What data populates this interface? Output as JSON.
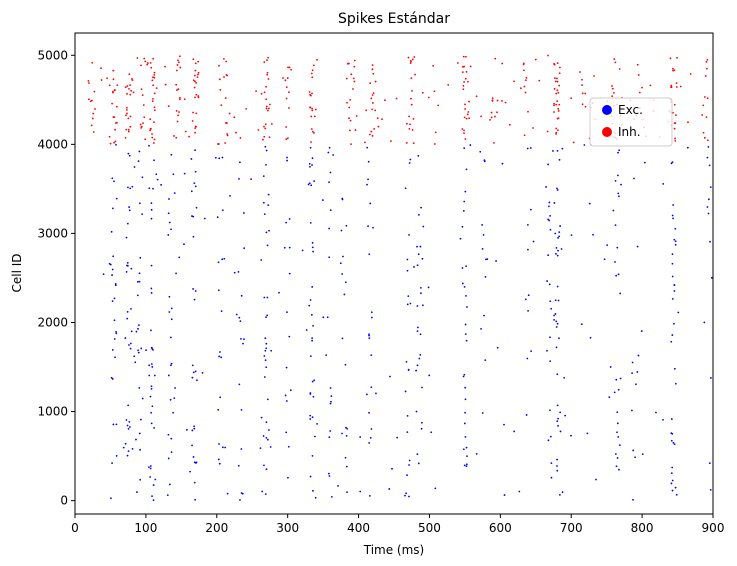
{
  "chart_data": {
    "type": "scatter",
    "title": "Spikes Estándar",
    "xlabel": "Time (ms)",
    "ylabel": "Cell ID",
    "xlim": [
      0,
      900
    ],
    "ylim": [
      -150,
      5250
    ],
    "xticks": [
      0,
      100,
      200,
      300,
      400,
      500,
      600,
      700,
      800,
      900
    ],
    "yticks": [
      0,
      1000,
      2000,
      3000,
      4000,
      5000
    ],
    "grid": false,
    "legend_position": "upper-right",
    "population_boundary": 4000,
    "n_cells": 5000,
    "series": [
      {
        "name": "Exc.",
        "color": "#0000ff",
        "cell_range": [
          0,
          4000
        ],
        "spike_bands_ms": [
          {
            "t": 55,
            "strength": 0.8
          },
          {
            "t": 75,
            "strength": 0.9
          },
          {
            "t": 90,
            "strength": 0.7
          },
          {
            "t": 108,
            "strength": 1.0
          },
          {
            "t": 135,
            "strength": 0.7
          },
          {
            "t": 168,
            "strength": 0.8
          },
          {
            "t": 205,
            "strength": 0.5
          },
          {
            "t": 235,
            "strength": 0.5
          },
          {
            "t": 270,
            "strength": 0.9
          },
          {
            "t": 300,
            "strength": 0.4
          },
          {
            "t": 335,
            "strength": 0.9
          },
          {
            "t": 360,
            "strength": 0.5
          },
          {
            "t": 380,
            "strength": 0.5
          },
          {
            "t": 415,
            "strength": 0.6
          },
          {
            "t": 470,
            "strength": 0.6
          },
          {
            "t": 485,
            "strength": 0.7
          },
          {
            "t": 550,
            "strength": 0.8
          },
          {
            "t": 575,
            "strength": 0.3
          },
          {
            "t": 640,
            "strength": 0.3
          },
          {
            "t": 670,
            "strength": 0.6
          },
          {
            "t": 680,
            "strength": 1.0
          },
          {
            "t": 765,
            "strength": 0.8
          },
          {
            "t": 790,
            "strength": 0.3
          },
          {
            "t": 845,
            "strength": 1.0
          },
          {
            "t": 895,
            "strength": 0.3
          }
        ]
      },
      {
        "name": "Inh.",
        "color": "#ff0000",
        "cell_range": [
          4000,
          5000
        ],
        "spike_bands_ms": [
          {
            "t": 25,
            "strength": 0.5
          },
          {
            "t": 55,
            "strength": 0.7
          },
          {
            "t": 75,
            "strength": 0.8
          },
          {
            "t": 95,
            "strength": 0.6
          },
          {
            "t": 110,
            "strength": 1.0
          },
          {
            "t": 145,
            "strength": 0.7
          },
          {
            "t": 170,
            "strength": 0.9
          },
          {
            "t": 215,
            "strength": 0.5
          },
          {
            "t": 270,
            "strength": 0.8
          },
          {
            "t": 300,
            "strength": 0.4
          },
          {
            "t": 335,
            "strength": 0.8
          },
          {
            "t": 390,
            "strength": 0.5
          },
          {
            "t": 420,
            "strength": 0.6
          },
          {
            "t": 475,
            "strength": 0.7
          },
          {
            "t": 550,
            "strength": 0.8
          },
          {
            "t": 590,
            "strength": 0.4
          },
          {
            "t": 635,
            "strength": 0.4
          },
          {
            "t": 680,
            "strength": 1.0
          },
          {
            "t": 720,
            "strength": 0.3
          },
          {
            "t": 760,
            "strength": 0.6
          },
          {
            "t": 800,
            "strength": 0.3
          },
          {
            "t": 845,
            "strength": 1.0
          },
          {
            "t": 890,
            "strength": 0.4
          }
        ]
      }
    ]
  }
}
